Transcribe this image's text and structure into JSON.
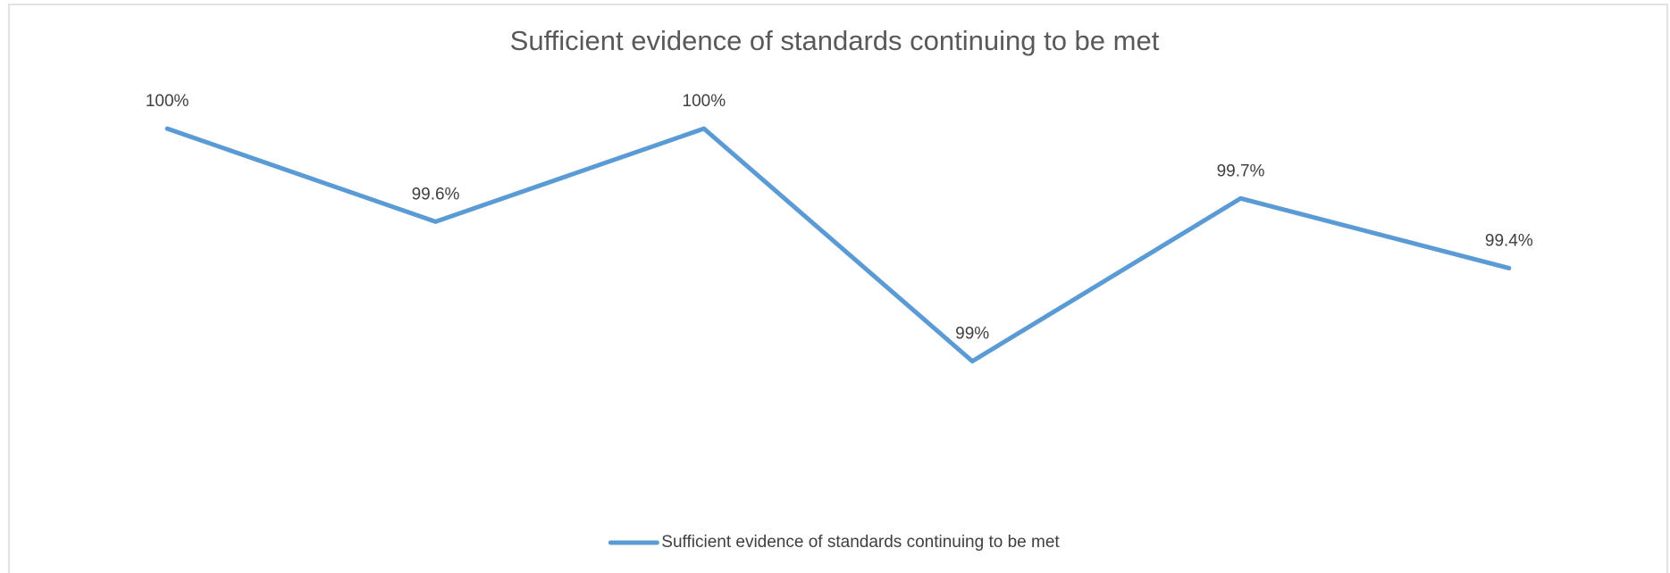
{
  "chart_data": {
    "type": "line",
    "title": "Sufficient evidence of standards continuing to be met",
    "categories": [
      null,
      null,
      null,
      null,
      null,
      null
    ],
    "series": [
      {
        "name": "Sufficient evidence of standards continuing to be met",
        "color": "#5b9bd5",
        "values": [
          100,
          99.6,
          100,
          99,
          99.7,
          99.4
        ],
        "value_labels": [
          "100%",
          "99.6%",
          "100%",
          "99%",
          "99.7%",
          "99.4%"
        ]
      }
    ],
    "ylim": [
      98.5,
      100.2
    ],
    "legend": "bottom"
  }
}
